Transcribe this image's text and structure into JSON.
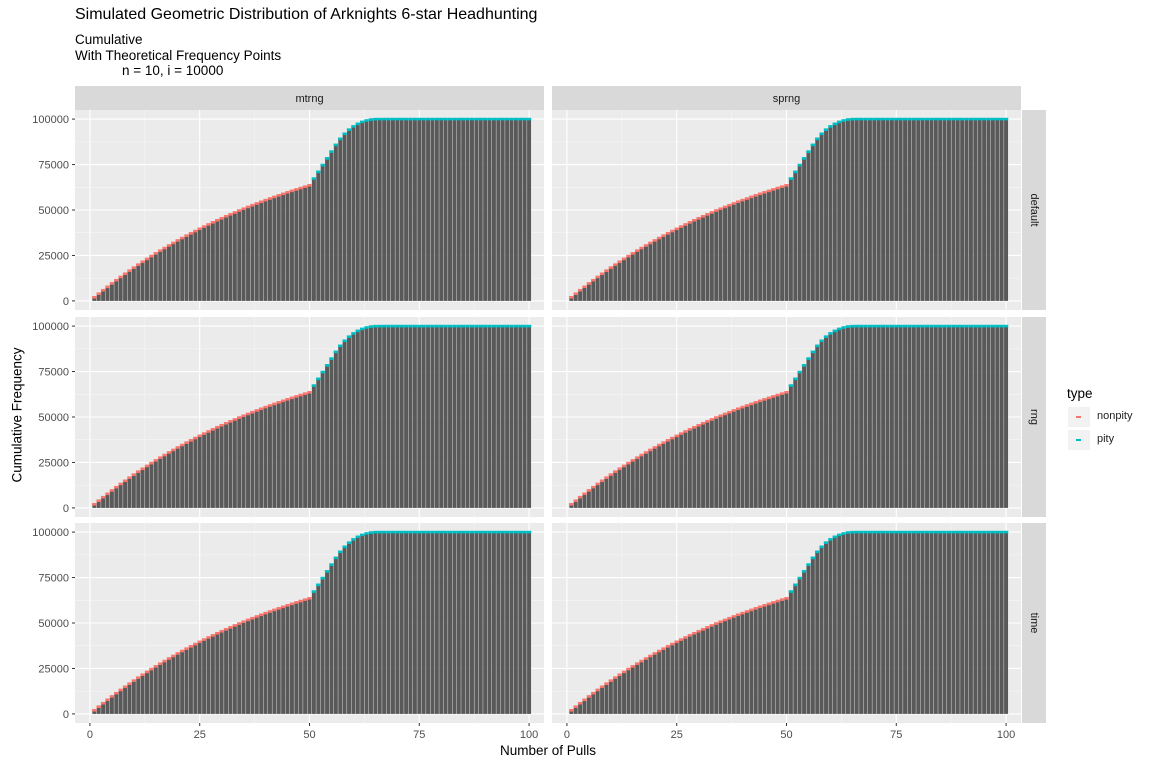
{
  "title": "Simulated Geometric Distribution of Arknights 6-star Headhunting",
  "subtitle_lines": [
    "Cumulative",
    "With Theoretical Frequency Points",
    "n = 10, i = 10000"
  ],
  "chart_data": {
    "type": "bar",
    "title": "Simulated Geometric Distribution of Arknights 6-star Headhunting",
    "xlabel": "Number of Pulls",
    "ylabel": "Cumulative Frequency",
    "xlim": [
      0,
      100
    ],
    "ylim": [
      0,
      100000
    ],
    "x_ticks": [
      0,
      25,
      50,
      75,
      100
    ],
    "y_ticks": [
      0,
      25000,
      50000,
      75000,
      100000
    ],
    "y_tick_labels": [
      "0",
      "25000",
      "50000",
      "75000",
      "100000"
    ],
    "grid": true,
    "facet_columns": [
      "mtrng",
      "sprng"
    ],
    "facet_rows": [
      "default",
      "rng",
      "time"
    ],
    "legend": {
      "title": "type",
      "position": "right",
      "entries": [
        {
          "name": "nonpity",
          "color": "#F8766D"
        },
        {
          "name": "pity",
          "color": "#00BFC4"
        }
      ]
    },
    "bar_color": "#595959",
    "points_description": "theoretical cumulative frequency; pulls 1-50 marked nonpity, 51-100 marked pity",
    "x": [
      1,
      2,
      3,
      4,
      5,
      6,
      7,
      8,
      9,
      10,
      11,
      12,
      13,
      14,
      15,
      16,
      17,
      18,
      19,
      20,
      21,
      22,
      23,
      24,
      25,
      26,
      27,
      28,
      29,
      30,
      31,
      32,
      33,
      34,
      35,
      36,
      37,
      38,
      39,
      40,
      41,
      42,
      43,
      44,
      45,
      46,
      47,
      48,
      49,
      50,
      51,
      52,
      53,
      54,
      55,
      56,
      57,
      58,
      59,
      60,
      61,
      62,
      63,
      64,
      65,
      66,
      67,
      68,
      69,
      70,
      71,
      72,
      73,
      74,
      75,
      76,
      77,
      78,
      79,
      80,
      81,
      82,
      83,
      84,
      85,
      86,
      87,
      88,
      89,
      90,
      91,
      92,
      93,
      94,
      95,
      96,
      97,
      98,
      99,
      100
    ],
    "theoretical": [
      2000,
      3960,
      5881,
      7763,
      9608,
      11416,
      13187,
      14924,
      16625,
      18293,
      19927,
      21528,
      23098,
      24636,
      26143,
      27620,
      29068,
      30486,
      31877,
      33239,
      34575,
      35883,
      37166,
      38422,
      39654,
      40861,
      42043,
      43203,
      44339,
      45452,
      46543,
      47612,
      48660,
      49687,
      50693,
      51679,
      52646,
      53593,
      54521,
      55431,
      56322,
      57196,
      58052,
      58891,
      59713,
      60519,
      61308,
      62082,
      62840,
      63583,
      67289,
      70995,
      74701,
      78407,
      82113,
      85819,
      89144,
      91926,
      94180,
      95979,
      97383,
      98452,
      99233,
      99747,
      99960,
      100000,
      100000,
      100000,
      100000,
      100000,
      100000,
      100000,
      100000,
      100000,
      100000,
      100000,
      100000,
      100000,
      100000,
      100000,
      100000,
      100000,
      100000,
      100000,
      100000,
      100000,
      100000,
      100000,
      100000,
      100000,
      100000,
      100000,
      100000,
      100000,
      100000,
      100000,
      100000,
      100000,
      100000,
      100000
    ],
    "panels": [
      {
        "col": "mtrng",
        "row": "default",
        "values": [
          2000,
          3960,
          5881,
          7763,
          9608,
          11416,
          13187,
          14924,
          16625,
          18293,
          19927,
          21528,
          23098,
          24636,
          26143,
          27620,
          29068,
          30486,
          31877,
          33239,
          34575,
          35883,
          37166,
          38422,
          39654,
          40861,
          42043,
          43203,
          44339,
          45452,
          46543,
          47612,
          48660,
          49687,
          50693,
          51679,
          52646,
          53593,
          54521,
          55431,
          56322,
          57196,
          58052,
          58891,
          59713,
          60519,
          61308,
          62082,
          62840,
          63583,
          67289,
          70995,
          74701,
          78407,
          82113,
          85819,
          89144,
          91926,
          94180,
          95979,
          97383,
          98452,
          99233,
          99747,
          99960,
          100000,
          100000,
          100000,
          100000,
          100000,
          100000,
          100000,
          100000,
          100000,
          100000,
          100000,
          100000,
          100000,
          100000,
          100000,
          100000,
          100000,
          100000,
          100000,
          100000,
          100000,
          100000,
          100000,
          100000,
          100000,
          100000,
          100000,
          100000,
          100000,
          100000,
          100000,
          100000,
          100000,
          100000,
          100000
        ]
      },
      {
        "col": "sprng",
        "row": "default",
        "values": [
          2000,
          3960,
          5881,
          7763,
          9608,
          11416,
          13187,
          14924,
          16625,
          18293,
          19927,
          21528,
          23098,
          24636,
          26143,
          27620,
          29068,
          30486,
          31877,
          33239,
          34575,
          35883,
          37166,
          38422,
          39654,
          40861,
          42043,
          43203,
          44339,
          45452,
          46543,
          47612,
          48660,
          49687,
          50693,
          51679,
          52646,
          53593,
          54521,
          55431,
          56322,
          57196,
          58052,
          58891,
          59713,
          60519,
          61308,
          62082,
          62840,
          63583,
          67289,
          70995,
          74701,
          78407,
          82113,
          85819,
          89144,
          91926,
          94180,
          95979,
          97383,
          98452,
          99233,
          99747,
          99960,
          100000,
          100000,
          100000,
          100000,
          100000,
          100000,
          100000,
          100000,
          100000,
          100000,
          100000,
          100000,
          100000,
          100000,
          100000,
          100000,
          100000,
          100000,
          100000,
          100000,
          100000,
          100000,
          100000,
          100000,
          100000,
          100000,
          100000,
          100000,
          100000,
          100000,
          100000,
          100000,
          100000,
          100000,
          100000
        ]
      },
      {
        "col": "mtrng",
        "row": "rng",
        "values": [
          2000,
          3960,
          5881,
          7763,
          9608,
          11416,
          13187,
          14924,
          16625,
          18293,
          19927,
          21528,
          23098,
          24636,
          26143,
          27620,
          29068,
          30486,
          31877,
          33239,
          34575,
          35883,
          37166,
          38422,
          39654,
          40861,
          42043,
          43203,
          44339,
          45452,
          46543,
          47612,
          48660,
          49687,
          50693,
          51679,
          52646,
          53593,
          54521,
          55431,
          56322,
          57196,
          58052,
          58891,
          59713,
          60519,
          61308,
          62082,
          62840,
          63583,
          67289,
          70995,
          74701,
          78407,
          82113,
          85819,
          89144,
          91926,
          94180,
          95979,
          97383,
          98452,
          99233,
          99747,
          99960,
          100000,
          100000,
          100000,
          100000,
          100000,
          100000,
          100000,
          100000,
          100000,
          100000,
          100000,
          100000,
          100000,
          100000,
          100000,
          100000,
          100000,
          100000,
          100000,
          100000,
          100000,
          100000,
          100000,
          100000,
          100000,
          100000,
          100000,
          100000,
          100000,
          100000,
          100000,
          100000,
          100000,
          100000,
          100000
        ]
      },
      {
        "col": "sprng",
        "row": "rng",
        "values": [
          2000,
          3960,
          5881,
          7763,
          9608,
          11416,
          13187,
          14924,
          16625,
          18293,
          19927,
          21528,
          23098,
          24636,
          26143,
          27620,
          29068,
          30486,
          31877,
          33239,
          34575,
          35883,
          37166,
          38422,
          39654,
          40861,
          42043,
          43203,
          44339,
          45452,
          46543,
          47612,
          48660,
          49687,
          50693,
          51679,
          52646,
          53593,
          54521,
          55431,
          56322,
          57196,
          58052,
          58891,
          59713,
          60519,
          61308,
          62082,
          62840,
          63583,
          67289,
          70995,
          74701,
          78407,
          82113,
          85819,
          89144,
          91926,
          94180,
          95979,
          97383,
          98452,
          99233,
          99747,
          99960,
          100000,
          100000,
          100000,
          100000,
          100000,
          100000,
          100000,
          100000,
          100000,
          100000,
          100000,
          100000,
          100000,
          100000,
          100000,
          100000,
          100000,
          100000,
          100000,
          100000,
          100000,
          100000,
          100000,
          100000,
          100000,
          100000,
          100000,
          100000,
          100000,
          100000,
          100000,
          100000,
          100000,
          100000,
          100000
        ]
      },
      {
        "col": "mtrng",
        "row": "time",
        "values": [
          2000,
          3960,
          5881,
          7763,
          9608,
          11416,
          13187,
          14924,
          16625,
          18293,
          19927,
          21528,
          23098,
          24636,
          26143,
          27620,
          29068,
          30486,
          31877,
          33239,
          34575,
          35883,
          37166,
          38422,
          39654,
          40861,
          42043,
          43203,
          44339,
          45452,
          46543,
          47612,
          48660,
          49687,
          50693,
          51679,
          52646,
          53593,
          54521,
          55431,
          56322,
          57196,
          58052,
          58891,
          59713,
          60519,
          61308,
          62082,
          62840,
          63583,
          67289,
          70995,
          74701,
          78407,
          82113,
          85819,
          89144,
          91926,
          94180,
          95979,
          97383,
          98452,
          99233,
          99747,
          99960,
          100000,
          100000,
          100000,
          100000,
          100000,
          100000,
          100000,
          100000,
          100000,
          100000,
          100000,
          100000,
          100000,
          100000,
          100000,
          100000,
          100000,
          100000,
          100000,
          100000,
          100000,
          100000,
          100000,
          100000,
          100000,
          100000,
          100000,
          100000,
          100000,
          100000,
          100000,
          100000,
          100000,
          100000,
          100000
        ]
      },
      {
        "col": "sprng",
        "row": "time",
        "values": [
          2000,
          3960,
          5881,
          7763,
          9608,
          11416,
          13187,
          14924,
          16625,
          18293,
          19927,
          21528,
          23098,
          24636,
          26143,
          27620,
          29068,
          30486,
          31877,
          33239,
          34575,
          35883,
          37166,
          38422,
          39654,
          40861,
          42043,
          43203,
          44339,
          45452,
          46543,
          47612,
          48660,
          49687,
          50693,
          51679,
          52646,
          53593,
          54521,
          55431,
          56322,
          57196,
          58052,
          58891,
          59713,
          60519,
          61308,
          62082,
          62840,
          63583,
          67289,
          70995,
          74701,
          78407,
          82113,
          85819,
          89144,
          91926,
          94180,
          95979,
          97383,
          98452,
          99233,
          99747,
          99960,
          100000,
          100000,
          100000,
          100000,
          100000,
          100000,
          100000,
          100000,
          100000,
          100000,
          100000,
          100000,
          100000,
          100000,
          100000,
          100000,
          100000,
          100000,
          100000,
          100000,
          100000,
          100000,
          100000,
          100000,
          100000,
          100000,
          100000,
          100000,
          100000,
          100000,
          100000,
          100000,
          100000,
          100000,
          100000
        ]
      }
    ]
  }
}
